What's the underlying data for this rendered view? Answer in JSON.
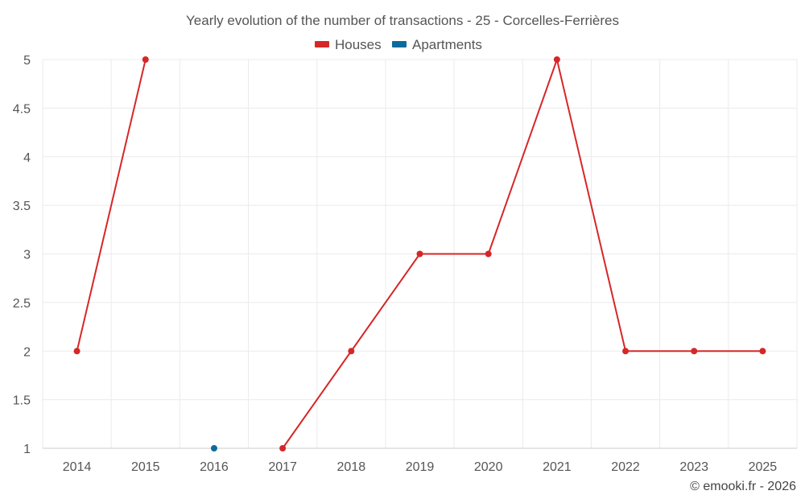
{
  "chart_data": {
    "type": "line",
    "title": "Yearly evolution of the number of transactions - 25 - Corcelles-Ferrières",
    "xlabel": "",
    "ylabel": "",
    "categories": [
      "2014",
      "2015",
      "2016",
      "2017",
      "2018",
      "2019",
      "2020",
      "2021",
      "2022",
      "2023",
      "2025"
    ],
    "ylim": [
      1,
      5
    ],
    "yticks": [
      "1",
      "1.5",
      "2",
      "2.5",
      "3",
      "3.5",
      "4",
      "4.5",
      "5"
    ],
    "legend_position": "top",
    "grid": true,
    "series": [
      {
        "name": "Houses",
        "color": "#d62728",
        "values": [
          2,
          5,
          null,
          1,
          2,
          3,
          3,
          5,
          2,
          2,
          2
        ]
      },
      {
        "name": "Apartments",
        "color": "#0e6a9c",
        "values": [
          null,
          null,
          1,
          null,
          null,
          null,
          null,
          null,
          null,
          null,
          null
        ]
      }
    ]
  },
  "credit": "© emooki.fr - 2026"
}
